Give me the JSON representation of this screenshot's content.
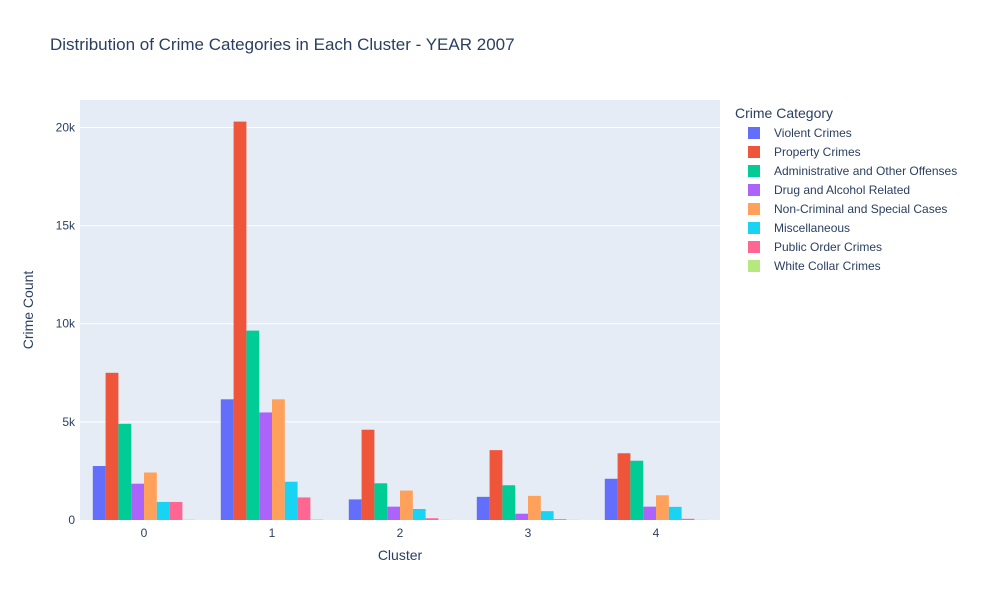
{
  "chart_data": {
    "type": "bar",
    "title": "Distribution of Crime Categories in Each Cluster - YEAR 2007",
    "xlabel": "Cluster",
    "ylabel": "Crime Count",
    "categories": [
      "0",
      "1",
      "2",
      "3",
      "4"
    ],
    "ylim": [
      0,
      21400
    ],
    "yticks": [
      0,
      5000,
      10000,
      15000,
      20000
    ],
    "ytick_labels": [
      "0",
      "5k",
      "10k",
      "15k",
      "20k"
    ],
    "grid": true,
    "legend_title": "Crime Category",
    "legend_position": "right",
    "series": [
      {
        "name": "Violent Crimes",
        "color": "#636efa",
        "values": [
          2750,
          6150,
          1050,
          1180,
          2100
        ]
      },
      {
        "name": "Property Crimes",
        "color": "#EF553B",
        "values": [
          7500,
          20300,
          4600,
          3560,
          3400
        ]
      },
      {
        "name": "Administrative and Other Offenses",
        "color": "#00cc96",
        "values": [
          4900,
          9650,
          1870,
          1770,
          3020
        ]
      },
      {
        "name": "Drug and Alcohol Related",
        "color": "#ab63fa",
        "values": [
          1850,
          5480,
          680,
          320,
          680
        ]
      },
      {
        "name": "Non-Criminal and Special Cases",
        "color": "#FFA15A",
        "values": [
          2420,
          6150,
          1500,
          1230,
          1260
        ]
      },
      {
        "name": "Miscellaneous",
        "color": "#19d3f3",
        "values": [
          920,
          1950,
          560,
          450,
          670
        ]
      },
      {
        "name": "Public Order Crimes",
        "color": "#FF6692",
        "values": [
          920,
          1150,
          90,
          40,
          60
        ]
      },
      {
        "name": "White Collar Crimes",
        "color": "#B6E880",
        "values": [
          20,
          40,
          10,
          10,
          10
        ]
      }
    ]
  }
}
